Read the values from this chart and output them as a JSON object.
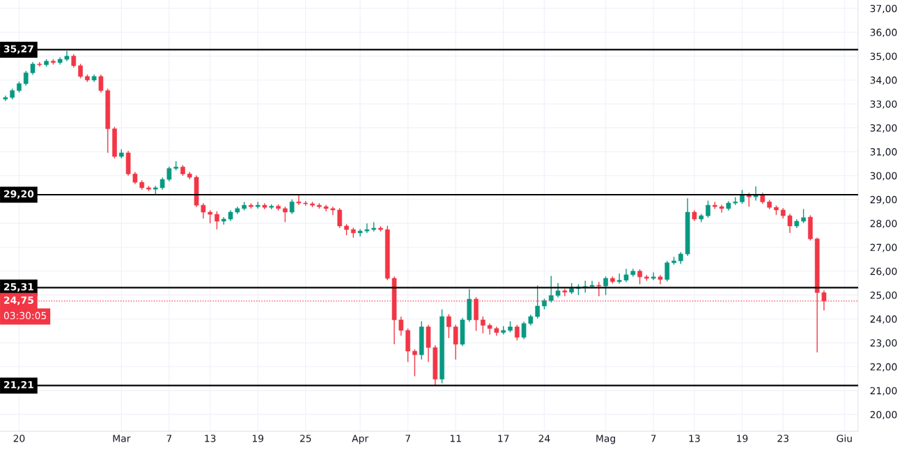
{
  "chart_data": {
    "type": "candlestick",
    "categories": [
      null,
      null,
      "20",
      null,
      null,
      null,
      null,
      null,
      null,
      null,
      null,
      null,
      null,
      null,
      null,
      null,
      null,
      "Mar",
      null,
      null,
      null,
      null,
      null,
      null,
      "7",
      null,
      null,
      null,
      null,
      null,
      "13",
      null,
      null,
      null,
      null,
      null,
      null,
      "19",
      null,
      null,
      null,
      null,
      null,
      null,
      "25",
      null,
      null,
      null,
      null,
      null,
      null,
      null,
      "Apr",
      null,
      null,
      null,
      null,
      null,
      null,
      "7",
      null,
      null,
      null,
      null,
      null,
      null,
      "11",
      null,
      null,
      null,
      null,
      null,
      null,
      "17",
      null,
      null,
      null,
      null,
      null,
      "24",
      null,
      null,
      null,
      null,
      null,
      null,
      null,
      null,
      "Mag",
      null,
      null,
      null,
      null,
      null,
      null,
      "7",
      null,
      null,
      null,
      null,
      null,
      "13",
      null,
      null,
      null,
      null,
      null,
      null,
      "19",
      null,
      null,
      null,
      null,
      null,
      "23",
      null,
      null,
      null,
      null,
      null,
      null,
      null,
      null,
      "Giu",
      null,
      null
    ],
    "ohlc": [
      [
        33.2,
        33.35,
        33.12,
        33.27
      ],
      [
        33.27,
        33.64,
        33.19,
        33.56
      ],
      [
        33.56,
        33.93,
        33.48,
        33.85
      ],
      [
        33.85,
        34.38,
        33.77,
        34.3
      ],
      [
        34.3,
        34.75,
        34.22,
        34.67
      ],
      [
        34.67,
        34.75,
        34.56,
        34.64
      ],
      [
        34.64,
        34.87,
        34.56,
        34.79
      ],
      [
        34.79,
        34.87,
        34.65,
        34.73
      ],
      [
        34.73,
        34.95,
        34.65,
        34.87
      ],
      [
        34.87,
        35.22,
        34.79,
        35.0
      ],
      [
        35.0,
        35.08,
        34.52,
        34.6
      ],
      [
        34.6,
        34.68,
        34.07,
        34.15
      ],
      [
        34.15,
        34.23,
        33.92,
        34.0
      ],
      [
        34.0,
        34.23,
        33.92,
        34.15
      ],
      [
        34.15,
        34.23,
        33.48,
        33.56
      ],
      [
        33.56,
        33.64,
        30.95,
        31.96
      ],
      [
        31.96,
        32.04,
        30.72,
        30.8
      ],
      [
        30.8,
        31.1,
        30.72,
        30.95
      ],
      [
        30.95,
        31.03,
        29.99,
        30.07
      ],
      [
        30.07,
        30.15,
        29.64,
        29.72
      ],
      [
        29.72,
        29.8,
        29.41,
        29.49
      ],
      [
        29.49,
        29.57,
        29.35,
        29.43
      ],
      [
        29.43,
        29.57,
        29.2,
        29.49
      ],
      [
        29.49,
        29.92,
        29.41,
        29.84
      ],
      [
        29.84,
        30.38,
        29.76,
        30.3
      ],
      [
        30.3,
        30.6,
        30.22,
        30.36
      ],
      [
        30.36,
        30.44,
        29.99,
        30.07
      ],
      [
        30.07,
        30.15,
        29.85,
        29.93
      ],
      [
        29.93,
        30.01,
        28.68,
        28.76
      ],
      [
        28.76,
        28.84,
        28.2,
        28.47
      ],
      [
        28.47,
        28.55,
        28.0,
        28.38
      ],
      [
        28.38,
        28.5,
        27.75,
        28.09
      ],
      [
        28.09,
        28.26,
        27.95,
        28.18
      ],
      [
        28.18,
        28.55,
        28.1,
        28.47
      ],
      [
        28.47,
        28.7,
        28.39,
        28.62
      ],
      [
        28.62,
        28.9,
        28.54,
        28.76
      ],
      [
        28.76,
        28.84,
        28.62,
        28.7
      ],
      [
        28.7,
        28.9,
        28.62,
        28.76
      ],
      [
        28.76,
        28.84,
        28.59,
        28.67
      ],
      [
        28.67,
        28.8,
        28.59,
        28.72
      ],
      [
        28.72,
        28.8,
        28.54,
        28.62
      ],
      [
        28.62,
        28.7,
        28.05,
        28.47
      ],
      [
        28.47,
        29.0,
        28.39,
        28.9
      ],
      [
        28.9,
        29.2,
        28.77,
        28.85
      ],
      [
        28.85,
        28.93,
        28.74,
        28.82
      ],
      [
        28.82,
        28.9,
        28.68,
        28.76
      ],
      [
        28.76,
        28.84,
        28.62,
        28.7
      ],
      [
        28.7,
        28.78,
        28.5,
        28.62
      ],
      [
        28.62,
        28.7,
        28.35,
        28.56
      ],
      [
        28.56,
        28.64,
        27.81,
        27.89
      ],
      [
        27.89,
        27.97,
        27.5,
        27.74
      ],
      [
        27.74,
        27.82,
        27.4,
        27.6
      ],
      [
        27.6,
        27.76,
        27.45,
        27.68
      ],
      [
        27.68,
        28.0,
        27.6,
        27.74
      ],
      [
        27.74,
        28.05,
        27.66,
        27.8
      ],
      [
        27.8,
        27.88,
        27.66,
        27.74
      ],
      [
        27.74,
        27.9,
        25.62,
        25.7
      ],
      [
        25.7,
        25.78,
        22.94,
        23.96
      ],
      [
        23.96,
        24.1,
        23.3,
        23.52
      ],
      [
        23.52,
        23.6,
        22.2,
        22.65
      ],
      [
        22.65,
        22.73,
        21.6,
        22.5
      ],
      [
        22.5,
        23.9,
        22.3,
        23.67
      ],
      [
        23.67,
        23.75,
        22.2,
        22.8
      ],
      [
        22.8,
        22.9,
        21.21,
        21.48
      ],
      [
        21.48,
        24.4,
        21.3,
        24.1
      ],
      [
        24.1,
        24.2,
        23.2,
        23.67
      ],
      [
        23.67,
        23.75,
        22.3,
        22.94
      ],
      [
        22.94,
        24.04,
        22.86,
        23.96
      ],
      [
        23.96,
        25.25,
        23.88,
        24.83
      ],
      [
        24.83,
        24.91,
        23.5,
        23.96
      ],
      [
        23.96,
        24.1,
        23.4,
        23.73
      ],
      [
        23.73,
        23.81,
        23.35,
        23.6
      ],
      [
        23.6,
        23.68,
        23.3,
        23.43
      ],
      [
        23.43,
        23.7,
        23.35,
        23.52
      ],
      [
        23.52,
        23.9,
        23.44,
        23.67
      ],
      [
        23.67,
        23.75,
        23.1,
        23.23
      ],
      [
        23.23,
        23.89,
        23.15,
        23.81
      ],
      [
        23.81,
        24.18,
        23.73,
        24.1
      ],
      [
        24.1,
        25.4,
        24.02,
        24.54
      ],
      [
        24.54,
        24.85,
        24.4,
        24.77
      ],
      [
        24.77,
        25.8,
        24.69,
        24.98
      ],
      [
        24.98,
        25.5,
        24.9,
        25.18
      ],
      [
        25.18,
        25.26,
        24.95,
        25.12
      ],
      [
        25.12,
        25.5,
        25.04,
        25.27
      ],
      [
        25.27,
        25.45,
        25.0,
        25.33
      ],
      [
        25.33,
        25.6,
        25.1,
        25.36
      ],
      [
        25.36,
        25.6,
        25.28,
        25.41
      ],
      [
        25.41,
        25.55,
        24.95,
        25.38
      ],
      [
        25.38,
        25.78,
        25.0,
        25.7
      ],
      [
        25.7,
        25.78,
        25.48,
        25.56
      ],
      [
        25.56,
        25.9,
        25.48,
        25.62
      ],
      [
        25.62,
        26.1,
        25.54,
        25.85
      ],
      [
        25.85,
        26.1,
        25.77,
        26.0
      ],
      [
        26.0,
        26.08,
        25.45,
        25.76
      ],
      [
        25.76,
        25.84,
        25.6,
        25.7
      ],
      [
        25.7,
        25.95,
        25.62,
        25.76
      ],
      [
        25.76,
        25.84,
        25.45,
        25.65
      ],
      [
        25.65,
        26.43,
        25.57,
        26.35
      ],
      [
        26.35,
        26.6,
        26.27,
        26.43
      ],
      [
        26.43,
        26.8,
        26.3,
        26.72
      ],
      [
        26.72,
        29.05,
        26.64,
        28.47
      ],
      [
        28.47,
        28.55,
        28.1,
        28.18
      ],
      [
        28.18,
        28.4,
        28.05,
        28.32
      ],
      [
        28.32,
        28.95,
        28.24,
        28.76
      ],
      [
        28.76,
        28.9,
        28.6,
        28.7
      ],
      [
        28.7,
        28.78,
        28.45,
        28.62
      ],
      [
        28.62,
        28.93,
        28.54,
        28.85
      ],
      [
        28.85,
        29.1,
        28.77,
        28.9
      ],
      [
        28.9,
        29.4,
        28.82,
        29.2
      ],
      [
        29.2,
        29.28,
        28.7,
        29.11
      ],
      [
        29.11,
        29.55,
        28.95,
        29.2
      ],
      [
        29.2,
        29.28,
        28.82,
        28.9
      ],
      [
        28.9,
        28.98,
        28.59,
        28.67
      ],
      [
        28.67,
        28.75,
        28.35,
        28.56
      ],
      [
        28.56,
        28.64,
        28.2,
        28.32
      ],
      [
        28.32,
        28.4,
        27.6,
        27.89
      ],
      [
        27.89,
        28.17,
        27.8,
        28.09
      ],
      [
        28.09,
        28.6,
        28.01,
        28.24
      ],
      [
        28.26,
        28.34,
        27.28,
        27.35
      ],
      [
        27.35,
        27.4,
        22.6,
        25.1
      ],
      [
        25.1,
        25.2,
        24.35,
        24.75
      ],
      null,
      null,
      null,
      null,
      null
    ],
    "colors": [
      "#089981",
      "#089981",
      "#089981",
      "#089981",
      "#089981",
      "#f23645",
      "#089981",
      "#f23645",
      "#089981",
      "#089981",
      "#f23645",
      "#f23645",
      "#f23645",
      "#089981",
      "#f23645",
      "#f23645",
      "#f23645",
      "#089981",
      "#f23645",
      "#f23645",
      "#f23645",
      "#f23645",
      "#089981",
      "#089981",
      "#089981",
      "#089981",
      "#f23645",
      "#f23645",
      "#f23645",
      "#f23645",
      "#f23645",
      "#f23645",
      "#089981",
      "#089981",
      "#089981",
      "#089981",
      "#f23645",
      "#089981",
      "#f23645",
      "#089981",
      "#f23645",
      "#f23645",
      "#089981",
      "#f23645",
      "#f23645",
      "#f23645",
      "#f23645",
      "#f23645",
      "#f23645",
      "#f23645",
      "#f23645",
      "#f23645",
      "#089981",
      "#089981",
      "#089981",
      "#f23645",
      "#f23645",
      "#f23645",
      "#f23645",
      "#f23645",
      "#f23645",
      "#089981",
      "#f23645",
      "#f23645",
      "#089981",
      "#f23645",
      "#f23645",
      "#089981",
      "#089981",
      "#f23645",
      "#f23645",
      "#f23645",
      "#f23645",
      "#089981",
      "#089981",
      "#f23645",
      "#089981",
      "#089981",
      "#089981",
      "#089981",
      "#089981",
      "#089981",
      "#f23645",
      "#089981",
      "#089981",
      "#089981",
      "#089981",
      "#f23645",
      "#089981",
      "#f23645",
      "#089981",
      "#089981",
      "#089981",
      "#f23645",
      "#f23645",
      "#089981",
      "#f23645",
      "#089981",
      "#089981",
      "#089981",
      "#089981",
      "#f23645",
      "#089981",
      "#089981",
      "#f23645",
      "#f23645",
      "#089981",
      "#089981",
      "#089981",
      "#f23645",
      "#089981",
      "#f23645",
      "#f23645",
      "#f23645",
      "#f23645",
      "#f23645",
      "#089981",
      "#089981",
      "#f23645",
      "#f23645",
      "#f23645",
      null,
      null,
      null,
      null,
      null
    ],
    "ylim": [
      19.3,
      37.35
    ],
    "yticks": [
      {
        "value": 20,
        "label": "20,00"
      },
      {
        "value": 21,
        "label": "21,00"
      },
      {
        "value": 22,
        "label": "22,00"
      },
      {
        "value": 23,
        "label": "23,00"
      },
      {
        "value": 24,
        "label": "24,00"
      },
      {
        "value": 25,
        "label": "25,00"
      },
      {
        "value": 26,
        "label": "26,00"
      },
      {
        "value": 27,
        "label": "27,00"
      },
      {
        "value": 28,
        "label": "28,00"
      },
      {
        "value": 29,
        "label": "29,00"
      },
      {
        "value": 30,
        "label": "30,00"
      },
      {
        "value": 31,
        "label": "31,00"
      },
      {
        "value": 32,
        "label": "32,00"
      },
      {
        "value": 33,
        "label": "33,00"
      },
      {
        "value": 34,
        "label": "34,00"
      },
      {
        "value": 35,
        "label": "35,00"
      },
      {
        "value": 36,
        "label": "36,00"
      },
      {
        "value": 37,
        "label": "37,00"
      }
    ],
    "ref_lines": [
      {
        "axis": "y",
        "value": 35.27,
        "label": "35,27",
        "color": "#000000",
        "line_style": "solid"
      },
      {
        "axis": "y",
        "value": 29.2,
        "label": "29,20",
        "color": "#000000",
        "line_style": "solid"
      },
      {
        "axis": "y",
        "value": 25.31,
        "label": "25,31",
        "color": "#000000",
        "line_style": "solid"
      },
      {
        "axis": "y",
        "value": 21.21,
        "label": "21,21",
        "color": "#000000",
        "line_style": "solid"
      },
      {
        "axis": "y",
        "value": 24.75,
        "label": "24,75",
        "color": "#f23645",
        "line_style": "dotted"
      }
    ],
    "annotations": [
      "03:30:05"
    ],
    "grid": true
  }
}
